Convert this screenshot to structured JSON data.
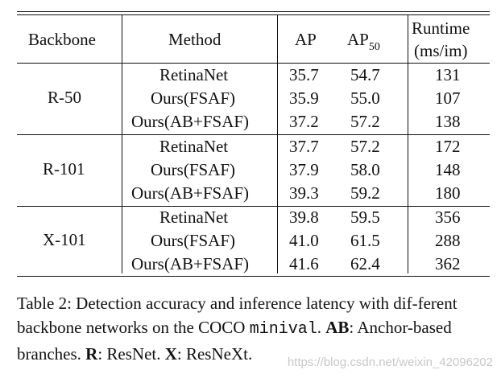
{
  "table": {
    "headers": {
      "backbone": "Backbone",
      "method": "Method",
      "ap": "AP",
      "ap50_main": "AP",
      "ap50_sub": "50",
      "runtime_line1": "Runtime",
      "runtime_line2": "(ms/im)"
    },
    "groups": [
      {
        "backbone": "R-50",
        "rows": [
          {
            "method": "RetinaNet",
            "ap": "35.7",
            "ap50": "54.7",
            "runtime": "131"
          },
          {
            "method": "Ours(FSAF)",
            "ap": "35.9",
            "ap50": "55.0",
            "runtime": "107"
          },
          {
            "method": "Ours(AB+FSAF)",
            "ap": "37.2",
            "ap50": "57.2",
            "runtime": "138"
          }
        ]
      },
      {
        "backbone": "R-101",
        "rows": [
          {
            "method": "RetinaNet",
            "ap": "37.7",
            "ap50": "57.2",
            "runtime": "172"
          },
          {
            "method": "Ours(FSAF)",
            "ap": "37.9",
            "ap50": "58.0",
            "runtime": "148"
          },
          {
            "method": "Ours(AB+FSAF)",
            "ap": "39.3",
            "ap50": "59.2",
            "runtime": "180"
          }
        ]
      },
      {
        "backbone": "X-101",
        "rows": [
          {
            "method": "RetinaNet",
            "ap": "39.8",
            "ap50": "59.5",
            "runtime": "356"
          },
          {
            "method": "Ours(FSAF)",
            "ap": "41.0",
            "ap50": "61.5",
            "runtime": "288"
          },
          {
            "method": "Ours(AB+FSAF)",
            "ap": "41.6",
            "ap50": "62.4",
            "runtime": "362"
          }
        ]
      }
    ]
  },
  "caption": {
    "part1": "Table 2: Detection accuracy and inference latency with dif-ferent backbone networks on the COCO ",
    "mono": "minival",
    "part2": ". ",
    "ab_bold": "AB",
    "ab_text": ": Anchor-based branches. ",
    "r_bold": "R",
    "r_text": ": ResNet. ",
    "x_bold": "X",
    "x_text": ": ResNeXt."
  },
  "watermark": "https://blog.csdn.net/weixin_42096202"
}
